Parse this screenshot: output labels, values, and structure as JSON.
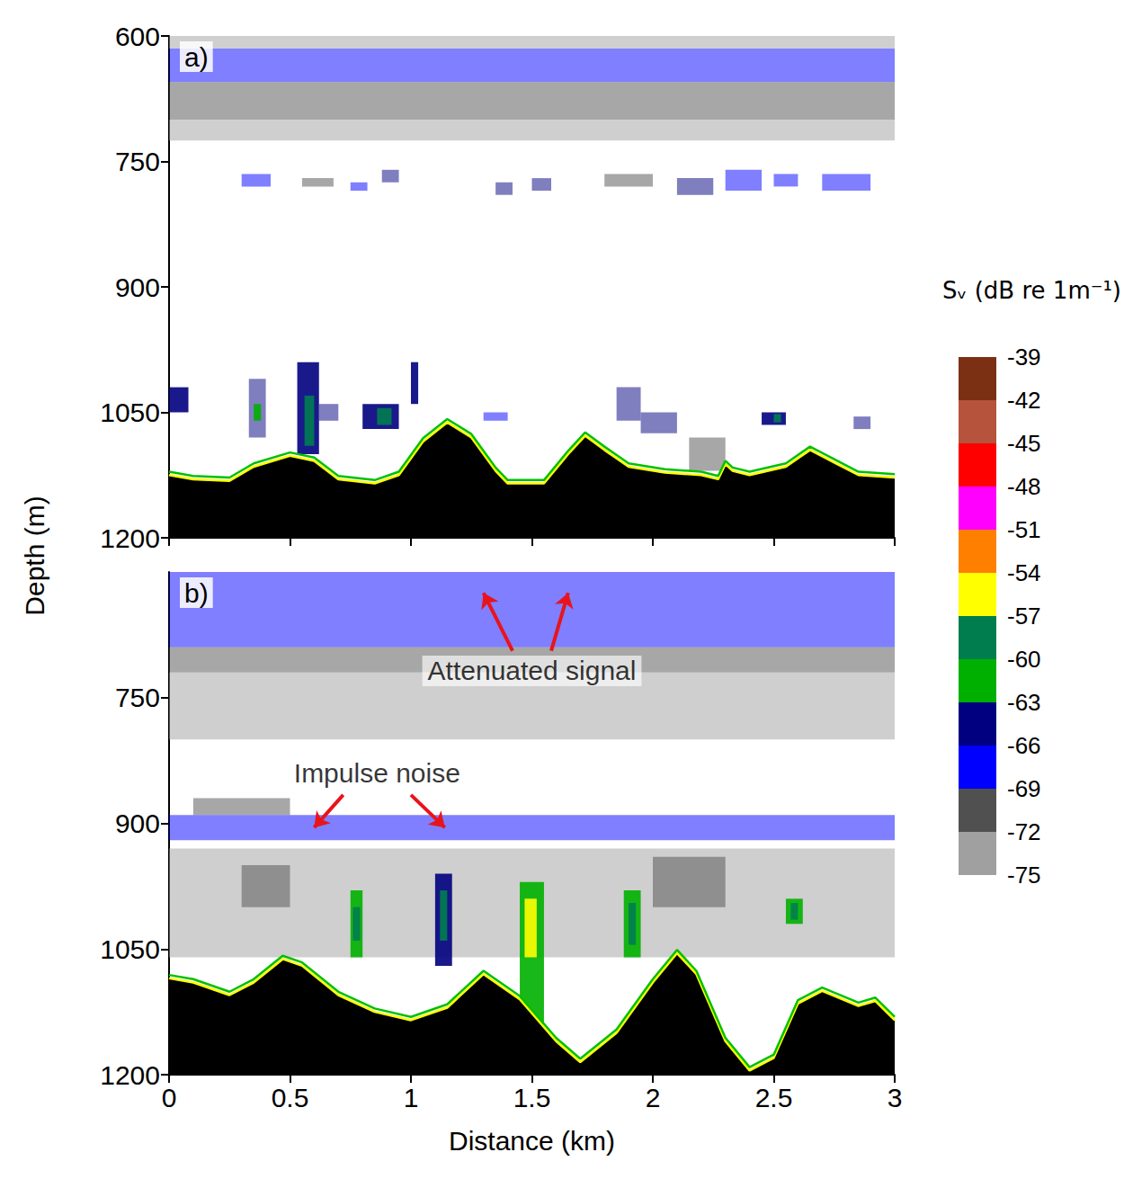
{
  "chart_data": [
    {
      "type": "echogram",
      "panel": "a)",
      "xlim": [
        0,
        3
      ],
      "xticks": [
        0,
        0.5,
        1,
        1.5,
        2,
        2.5,
        3
      ],
      "ylim": [
        600,
        1200
      ],
      "yticks": [
        600,
        750,
        900,
        1050,
        1200
      ],
      "tick_labels": "y",
      "x": [
        0,
        0.1,
        0.25,
        0.35,
        0.5,
        0.6,
        0.7,
        0.85,
        0.95,
        1.05,
        1.15,
        1.25,
        1.35,
        1.4,
        1.55,
        1.65,
        1.72,
        1.8,
        1.9,
        2.05,
        2.2,
        2.27,
        2.3,
        2.33,
        2.4,
        2.55,
        2.65,
        2.75,
        2.85,
        3
      ],
      "series": [
        {
          "type": "area",
          "color": "#000000",
          "values": [
            1125,
            1130,
            1132,
            1115,
            1102,
            1108,
            1130,
            1135,
            1125,
            1085,
            1062,
            1080,
            1120,
            1135,
            1135,
            1100,
            1078,
            1095,
            1115,
            1122,
            1125,
            1130,
            1112,
            1120,
            1125,
            1115,
            1095,
            1110,
            1125,
            1128
          ]
        },
        {
          "type": "line",
          "color": "#ffff00",
          "values": [
            1125,
            1130,
            1132,
            1115,
            1102,
            1108,
            1130,
            1135,
            1125,
            1085,
            1062,
            1080,
            1120,
            1135,
            1135,
            1100,
            1078,
            1095,
            1115,
            1122,
            1125,
            1130,
            1112,
            1120,
            1125,
            1115,
            1095,
            1110,
            1125,
            1128
          ]
        },
        {
          "type": "line",
          "color": "#00c000",
          "values": [
            1121,
            1126,
            1128,
            1111,
            1098,
            1104,
            1126,
            1131,
            1121,
            1081,
            1058,
            1076,
            1116,
            1131,
            1131,
            1096,
            1074,
            1091,
            1111,
            1118,
            1121,
            1126,
            1108,
            1116,
            1121,
            1111,
            1091,
            1106,
            1121,
            1124
          ]
        }
      ],
      "cells": [
        [
          0,
          3,
          600,
          615,
          -73
        ],
        [
          0,
          3,
          615,
          655,
          -68
        ],
        [
          0,
          3,
          655,
          700,
          -72
        ],
        [
          0,
          3,
          700,
          725,
          -74
        ],
        [
          0.3,
          0.42,
          765,
          780,
          -68
        ],
        [
          0.55,
          0.68,
          770,
          780,
          -70
        ],
        [
          0.75,
          0.82,
          775,
          785,
          -67
        ],
        [
          0.88,
          0.95,
          760,
          775,
          -66
        ],
        [
          1.35,
          1.42,
          775,
          790,
          -66
        ],
        [
          1.5,
          1.58,
          770,
          785,
          -66
        ],
        [
          1.8,
          2.0,
          765,
          780,
          -70
        ],
        [
          2.1,
          2.25,
          770,
          790,
          -66
        ],
        [
          2.3,
          2.45,
          760,
          785,
          -67
        ],
        [
          2.5,
          2.6,
          765,
          780,
          -67
        ],
        [
          2.7,
          2.9,
          765,
          785,
          -68
        ],
        [
          0,
          0.08,
          1020,
          1050,
          -65
        ],
        [
          0.33,
          0.4,
          1010,
          1080,
          -66
        ],
        [
          0.35,
          0.38,
          1040,
          1060,
          -61
        ],
        [
          0.53,
          0.62,
          990,
          1100,
          -64
        ],
        [
          0.56,
          0.6,
          1030,
          1090,
          -58
        ],
        [
          0.62,
          0.7,
          1040,
          1060,
          -66
        ],
        [
          0.8,
          0.95,
          1040,
          1070,
          -64
        ],
        [
          0.86,
          0.92,
          1045,
          1065,
          -60
        ],
        [
          1.0,
          1.03,
          990,
          1040,
          -64
        ],
        [
          1.3,
          1.4,
          1050,
          1060,
          -69
        ],
        [
          1.85,
          1.95,
          1020,
          1060,
          -66
        ],
        [
          1.95,
          2.1,
          1050,
          1075,
          -66
        ],
        [
          2.15,
          2.3,
          1080,
          1120,
          -71
        ],
        [
          2.45,
          2.55,
          1050,
          1065,
          -64
        ],
        [
          2.5,
          2.53,
          1052,
          1062,
          -60
        ],
        [
          2.83,
          2.9,
          1055,
          1070,
          -66
        ]
      ],
      "annotations": []
    },
    {
      "type": "echogram",
      "panel": "b)",
      "xlim": [
        0,
        3
      ],
      "xticks": [
        0,
        0.5,
        1,
        1.5,
        2,
        2.5,
        3
      ],
      "ylim": [
        600,
        1200
      ],
      "yticks": [
        750,
        900,
        1050,
        1200
      ],
      "xlabel": "Distance (km)",
      "x": [
        0,
        0.1,
        0.25,
        0.35,
        0.47,
        0.55,
        0.7,
        0.85,
        1.0,
        1.15,
        1.3,
        1.45,
        1.6,
        1.7,
        1.85,
        2.0,
        2.1,
        2.18,
        2.3,
        2.4,
        2.5,
        2.6,
        2.7,
        2.85,
        2.92,
        3
      ],
      "series": [
        {
          "type": "area",
          "color": "#000000",
          "values": [
            1085,
            1090,
            1105,
            1090,
            1062,
            1070,
            1105,
            1125,
            1135,
            1120,
            1080,
            1110,
            1160,
            1185,
            1150,
            1090,
            1055,
            1080,
            1160,
            1195,
            1180,
            1115,
            1100,
            1118,
            1112,
            1135
          ]
        },
        {
          "type": "line",
          "color": "#ffff00",
          "values": [
            1085,
            1090,
            1105,
            1090,
            1062,
            1070,
            1105,
            1125,
            1135,
            1120,
            1080,
            1110,
            1160,
            1185,
            1150,
            1090,
            1055,
            1080,
            1160,
            1195,
            1180,
            1115,
            1100,
            1118,
            1112,
            1135
          ]
        },
        {
          "type": "line",
          "color": "#00c000",
          "values": [
            1081,
            1086,
            1101,
            1086,
            1058,
            1066,
            1101,
            1121,
            1131,
            1116,
            1076,
            1106,
            1156,
            1181,
            1146,
            1086,
            1051,
            1076,
            1156,
            1191,
            1176,
            1111,
            1096,
            1114,
            1108,
            1131
          ]
        }
      ],
      "cells": [
        [
          0,
          3,
          600,
          690,
          -67
        ],
        [
          0,
          3,
          690,
          720,
          -70
        ],
        [
          0,
          3,
          720,
          800,
          -74
        ],
        [
          0.1,
          0.5,
          870,
          890,
          -72
        ],
        [
          0,
          3,
          890,
          920,
          -68
        ],
        [
          0,
          3,
          930,
          1060,
          -74
        ],
        [
          0.3,
          0.5,
          950,
          1000,
          -70
        ],
        [
          2.0,
          2.3,
          940,
          1000,
          -70
        ],
        [
          0.75,
          0.8,
          980,
          1060,
          -63
        ],
        [
          0.76,
          0.79,
          1000,
          1040,
          -60
        ],
        [
          1.1,
          1.17,
          960,
          1070,
          -64
        ],
        [
          1.12,
          1.15,
          980,
          1040,
          -60
        ],
        [
          1.45,
          1.55,
          970,
          1140,
          -63
        ],
        [
          1.47,
          1.52,
          990,
          1060,
          -56
        ],
        [
          1.88,
          1.95,
          980,
          1060,
          -63
        ],
        [
          1.9,
          1.93,
          995,
          1045,
          -60
        ],
        [
          2.55,
          2.62,
          990,
          1020,
          -63
        ],
        [
          2.57,
          2.6,
          995,
          1015,
          -60
        ]
      ],
      "annotations": [
        {
          "text": "Attenuated signal",
          "x": 1.5,
          "y": 718,
          "arrows": [
            {
              "from": [
                1.42,
                694
              ],
              "to": [
                1.3,
                625
              ]
            },
            {
              "from": [
                1.58,
                694
              ],
              "to": [
                1.65,
                625
              ]
            }
          ]
        },
        {
          "text": "Impulse noise",
          "x": 0.86,
          "y": 840,
          "arrows": [
            {
              "from": [
                0.72,
                866
              ],
              "to": [
                0.6,
                905
              ]
            },
            {
              "from": [
                1.0,
                866
              ],
              "to": [
                1.14,
                905
              ]
            }
          ]
        }
      ]
    }
  ],
  "ylabel": "Depth (m)",
  "colorbar": {
    "title": "Sᵥ (dB re 1m⁻¹)",
    "range": [
      -75,
      -39
    ],
    "ticks": [
      -39,
      -42,
      -45,
      -48,
      -51,
      -54,
      -57,
      -60,
      -63,
      -66,
      -69,
      -72,
      -75
    ],
    "colors": [
      "#7b3014",
      "#b5533c",
      "#ff0000",
      "#ff00ff",
      "#ff8000",
      "#ffff00",
      "#007d4f",
      "#00b000",
      "#000080",
      "#0000ff",
      "#505050",
      "#a0a0a0"
    ]
  }
}
